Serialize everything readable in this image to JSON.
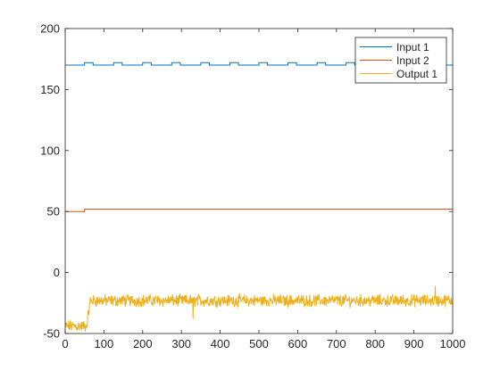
{
  "chart_data": {
    "type": "line",
    "title": "",
    "xlabel": "",
    "ylabel": "",
    "xlim": [
      0,
      1000
    ],
    "ylim": [
      -50,
      200
    ],
    "xticks": [
      0,
      100,
      200,
      300,
      400,
      500,
      600,
      700,
      800,
      900,
      1000
    ],
    "yticks": [
      -50,
      0,
      50,
      100,
      150,
      200
    ],
    "grid": false,
    "legend_position": "top-right",
    "series": [
      {
        "name": "Input 1",
        "color": "#0072BD",
        "shape": "square-wave",
        "low": 170,
        "high": 172,
        "period": 75,
        "pulse_width": 22,
        "first_rise": 50,
        "last_fall": 967
      },
      {
        "name": "Input 2",
        "color": "#D95319",
        "shape": "step",
        "initial": 50,
        "final": 52,
        "step_x": 50
      },
      {
        "name": "Output 1",
        "color": "#EDB120",
        "shape": "noisy-step",
        "initial_mean": -44,
        "final_mean": -23,
        "rise_start": 55,
        "rise_end": 65,
        "noise_amplitude": 4,
        "min_observed": -40,
        "max_observed": -10
      }
    ]
  }
}
